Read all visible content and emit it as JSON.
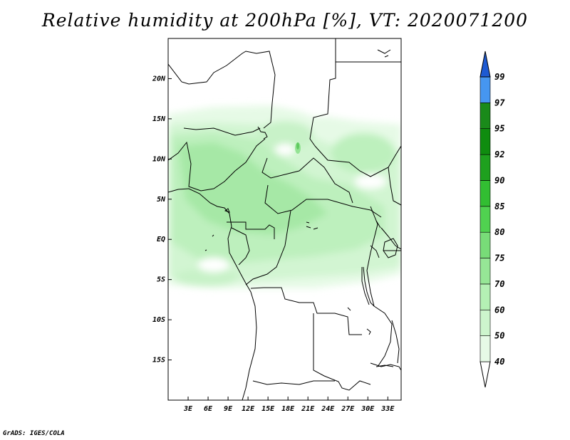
{
  "title": "Relative humidity at 200hPa [%], VT: 2020071200",
  "credit": "GrADS: IGES/COLA",
  "map": {
    "lon_range": [
      0,
      35
    ],
    "lat_range": [
      -20,
      25
    ],
    "lat_ticks": [
      {
        "value": 20,
        "label": "20N"
      },
      {
        "value": 15,
        "label": "15N"
      },
      {
        "value": 10,
        "label": "10N"
      },
      {
        "value": 5,
        "label": "5N"
      },
      {
        "value": 0,
        "label": "EQ"
      },
      {
        "value": -5,
        "label": "5S"
      },
      {
        "value": -10,
        "label": "10S"
      },
      {
        "value": -15,
        "label": "15S"
      }
    ],
    "lon_ticks": [
      {
        "value": 3,
        "label": "3E"
      },
      {
        "value": 6,
        "label": "6E"
      },
      {
        "value": 9,
        "label": "9E"
      },
      {
        "value": 12,
        "label": "12E"
      },
      {
        "value": 15,
        "label": "15E"
      },
      {
        "value": 18,
        "label": "18E"
      },
      {
        "value": 21,
        "label": "21E"
      },
      {
        "value": 24,
        "label": "24E"
      },
      {
        "value": 27,
        "label": "27E"
      },
      {
        "value": 30,
        "label": "30E"
      },
      {
        "value": 33,
        "label": "33E"
      }
    ]
  },
  "colorbar": {
    "levels": [
      {
        "label": "40",
        "color": "#e6fae6"
      },
      {
        "label": "50",
        "color": "#cdf5cd"
      },
      {
        "label": "60",
        "color": "#b4f0b4"
      },
      {
        "label": "70",
        "color": "#96e696"
      },
      {
        "label": "75",
        "color": "#78dc78"
      },
      {
        "label": "80",
        "color": "#50d250"
      },
      {
        "label": "85",
        "color": "#32be32"
      },
      {
        "label": "90",
        "color": "#1ea01e"
      },
      {
        "label": "92",
        "color": "#0f8c0f"
      },
      {
        "label": "95",
        "color": "#1a8a1a"
      },
      {
        "label": "97",
        "color": "#4696f0"
      },
      {
        "label": "99",
        "color": "#2878e6"
      }
    ],
    "over_color": "#1e5ad2",
    "under_color": "#ffffff"
  }
}
